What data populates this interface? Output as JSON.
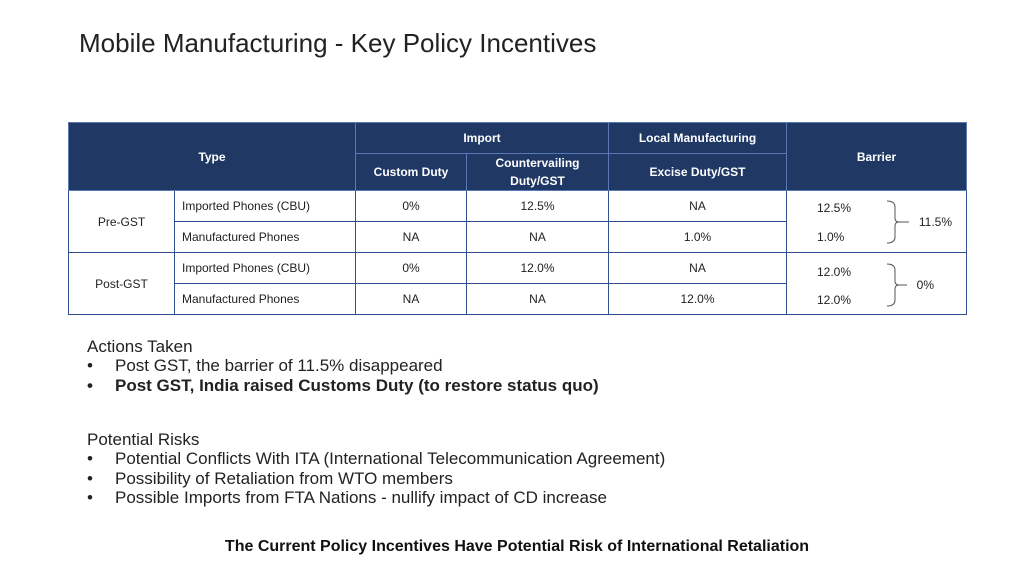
{
  "title": "Mobile Manufacturing - Key Policy Incentives",
  "table": {
    "headers": {
      "type": "Type",
      "import": "Import",
      "local": "Local Manufacturing",
      "barrier": "Barrier",
      "custom_duty": "Custom Duty",
      "countervailing": "Countervailing Duty/GST",
      "excise": "Excise Duty/GST"
    },
    "groups": [
      {
        "label": "Pre-GST",
        "rows": [
          {
            "type": "Imported Phones (CBU)",
            "custom_duty": "0%",
            "countervailing": "12.5%",
            "excise": "NA",
            "barrier": "12.5%"
          },
          {
            "type": "Manufactured Phones",
            "custom_duty": "NA",
            "countervailing": "NA",
            "excise": "1.0%",
            "barrier": "1.0%"
          }
        ],
        "barrier_result": "11.5%"
      },
      {
        "label": "Post-GST",
        "rows": [
          {
            "type": "Imported Phones (CBU)",
            "custom_duty": "0%",
            "countervailing": "12.0%",
            "excise": "NA",
            "barrier": "12.0%"
          },
          {
            "type": "Manufactured Phones",
            "custom_duty": "NA",
            "countervailing": "NA",
            "excise": "12.0%",
            "barrier": "12.0%"
          }
        ],
        "barrier_result": "0%"
      }
    ]
  },
  "actions": {
    "heading": "Actions Taken",
    "items": [
      "Post GST, the barrier of 11.5% disappeared",
      "Post GST, India raised Customs Duty (to restore status quo)"
    ]
  },
  "risks": {
    "heading": "Potential Risks",
    "items": [
      "Potential Conflicts With ITA (International Telecommunication Agreement)",
      "Possibility of Retaliation from WTO members",
      "Possible Imports from FTA Nations  - nullify impact of CD increase"
    ]
  },
  "bullet": "•",
  "footer": "The Current Policy Incentives Have Potential Risk of International Retaliation"
}
